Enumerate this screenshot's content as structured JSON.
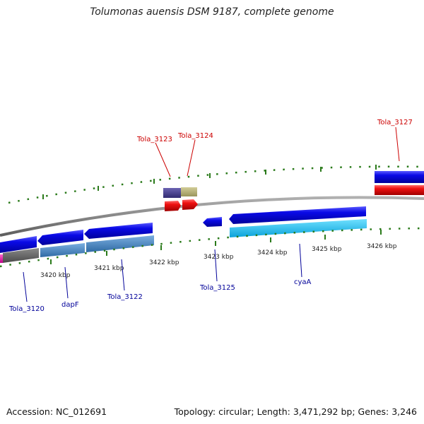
{
  "title": "Tolumonas auensis DSM 9187, complete genome",
  "footer": {
    "accession": "Accession: NC_012691",
    "summary": "Topology: circular; Length: 3,471,292 bp; Genes: 3,246"
  },
  "ticks": [
    "3420 kbp",
    "3421 kbp",
    "3422 kbp",
    "3423 kbp",
    "3424 kbp",
    "3425 kbp",
    "3426 kbp"
  ],
  "labels": [
    "Tola_3123",
    "Tola_3124",
    "Tola_3127",
    "Tola_3120",
    "dapF",
    "Tola_3122",
    "Tola_3125",
    "cyaA"
  ],
  "colors": {
    "cds": "#0a0ae6",
    "gene_red": "#ee1111",
    "gene_gray": "#6b6b6b",
    "gene_steel": "#4a86c0",
    "gene_cyan": "#22c0f0",
    "gene_purple": "#4b4490",
    "gene_khaki": "#b7b27a",
    "backbone": "#888888",
    "ruler": "#2a7a1a",
    "label_red": "#cc0000",
    "label_blue": "#000099"
  }
}
